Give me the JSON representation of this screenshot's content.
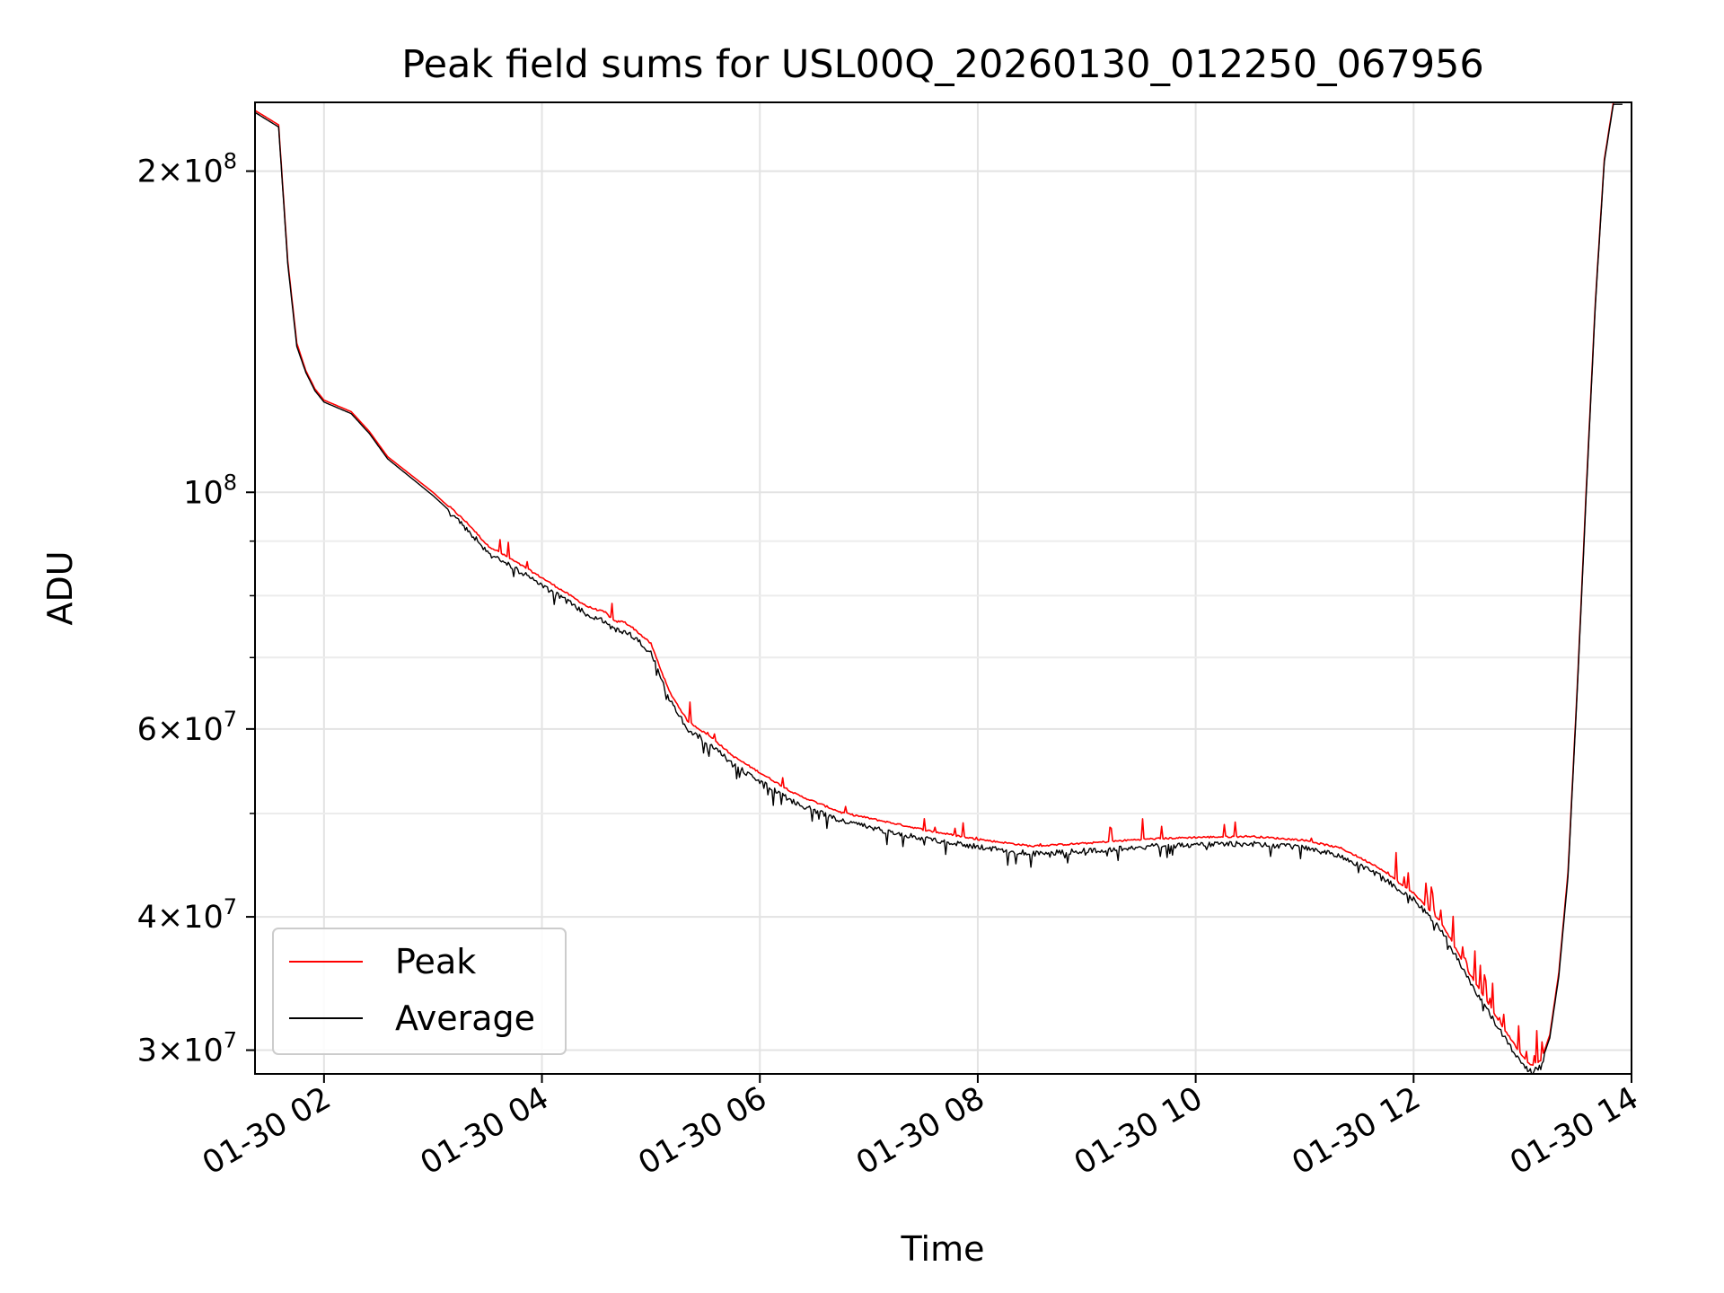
{
  "chart_data": {
    "type": "line",
    "title": "Peak field sums for USL00Q_20260130_012250_067956",
    "xlabel": "Time",
    "ylabel": "ADU",
    "y_scale": "log",
    "xlim": [
      "2026-01-30 01:22",
      "2026-01-30 14:00"
    ],
    "ylim": [
      28500000,
      232000000
    ],
    "grid": true,
    "legend_position": "lower-left",
    "x_ticks": [
      {
        "value": "2026-01-30 02:00",
        "label": "01-30 02"
      },
      {
        "value": "2026-01-30 04:00",
        "label": "01-30 04"
      },
      {
        "value": "2026-01-30 06:00",
        "label": "01-30 06"
      },
      {
        "value": "2026-01-30 08:00",
        "label": "01-30 08"
      },
      {
        "value": "2026-01-30 10:00",
        "label": "01-30 10"
      },
      {
        "value": "2026-01-30 12:00",
        "label": "01-30 12"
      },
      {
        "value": "2026-01-30 14:00",
        "label": "01-30 14"
      }
    ],
    "y_major_ticks": [
      {
        "value": 30000000,
        "mantissa": "3",
        "exponent": "7"
      },
      {
        "value": 40000000,
        "mantissa": "4",
        "exponent": "7"
      },
      {
        "value": 60000000,
        "mantissa": "6",
        "exponent": "7"
      },
      {
        "value": 100000000,
        "mantissa": "",
        "exponent": "8"
      },
      {
        "value": 200000000,
        "mantissa": "2",
        "exponent": "8"
      }
    ],
    "y_minor_ticks": [
      50000000,
      70000000,
      80000000,
      90000000
    ],
    "series": [
      {
        "name": "Peak",
        "color": "#ff0000",
        "x": [
          "2026-01-30 01:22",
          "2026-01-30 01:35",
          "2026-01-30 01:40",
          "2026-01-30 01:45",
          "2026-01-30 01:50",
          "2026-01-30 01:55",
          "2026-01-30 02:00",
          "2026-01-30 02:15",
          "2026-01-30 02:25",
          "2026-01-30 02:35",
          "2026-01-30 03:00",
          "2026-01-30 03:20",
          "2026-01-30 03:30",
          "2026-01-30 03:40",
          "2026-01-30 04:00",
          "2026-01-30 04:15",
          "2026-01-30 04:25",
          "2026-01-30 04:35",
          "2026-01-30 04:40",
          "2026-01-30 04:45",
          "2026-01-30 04:50",
          "2026-01-30 05:00",
          "2026-01-30 05:10",
          "2026-01-30 05:20",
          "2026-01-30 05:35",
          "2026-01-30 05:45",
          "2026-01-30 06:00",
          "2026-01-30 06:20",
          "2026-01-30 06:45",
          "2026-01-30 07:10",
          "2026-01-30 07:35",
          "2026-01-30 08:00",
          "2026-01-30 08:30",
          "2026-01-30 09:00",
          "2026-01-30 09:30",
          "2026-01-30 10:00",
          "2026-01-30 10:30",
          "2026-01-30 11:00",
          "2026-01-30 11:20",
          "2026-01-30 11:40",
          "2026-01-30 12:00",
          "2026-01-30 12:15",
          "2026-01-30 12:30",
          "2026-01-30 12:45",
          "2026-01-30 12:55",
          "2026-01-30 13:00",
          "2026-01-30 13:05",
          "2026-01-30 13:10",
          "2026-01-30 13:15",
          "2026-01-30 13:20",
          "2026-01-30 13:25",
          "2026-01-30 13:30",
          "2026-01-30 13:35",
          "2026-01-30 13:40",
          "2026-01-30 13:45",
          "2026-01-30 13:50",
          "2026-01-30 13:55"
        ],
        "values": [
          228000000,
          221000000,
          165000000,
          138000000,
          130000000,
          125000000,
          122000000,
          119000000,
          114000000,
          108000000,
          100000000,
          93000000,
          89000000,
          87000000,
          83000000,
          80000000,
          78000000,
          77000000,
          75500000,
          75500000,
          74500000,
          72000000,
          65000000,
          61000000,
          58500000,
          56500000,
          54500000,
          52000000,
          50000000,
          49000000,
          48000000,
          47200000,
          46500000,
          46800000,
          47200000,
          47400000,
          47500000,
          47100000,
          46300000,
          44500000,
          42000000,
          39500000,
          35500000,
          32300000,
          30400000,
          29500000,
          29000000,
          29300000,
          31000000,
          35500000,
          44000000,
          65000000,
          100000000,
          150000000,
          205000000,
          232000000,
          232000000
        ]
      },
      {
        "name": "Average",
        "color": "#000000",
        "x": [
          "2026-01-30 01:22",
          "2026-01-30 01:35",
          "2026-01-30 01:40",
          "2026-01-30 01:45",
          "2026-01-30 01:50",
          "2026-01-30 01:55",
          "2026-01-30 02:00",
          "2026-01-30 02:15",
          "2026-01-30 02:25",
          "2026-01-30 02:35",
          "2026-01-30 03:00",
          "2026-01-30 03:20",
          "2026-01-30 03:30",
          "2026-01-30 03:40",
          "2026-01-30 04:00",
          "2026-01-30 04:15",
          "2026-01-30 04:25",
          "2026-01-30 04:35",
          "2026-01-30 04:40",
          "2026-01-30 04:45",
          "2026-01-30 04:50",
          "2026-01-30 05:00",
          "2026-01-30 05:10",
          "2026-01-30 05:20",
          "2026-01-30 05:35",
          "2026-01-30 05:45",
          "2026-01-30 06:00",
          "2026-01-30 06:20",
          "2026-01-30 06:45",
          "2026-01-30 07:10",
          "2026-01-30 07:35",
          "2026-01-30 08:00",
          "2026-01-30 08:30",
          "2026-01-30 09:00",
          "2026-01-30 09:30",
          "2026-01-30 10:00",
          "2026-01-30 10:30",
          "2026-01-30 11:00",
          "2026-01-30 11:20",
          "2026-01-30 11:40",
          "2026-01-30 12:00",
          "2026-01-30 12:15",
          "2026-01-30 12:30",
          "2026-01-30 12:45",
          "2026-01-30 12:55",
          "2026-01-30 13:00",
          "2026-01-30 13:05",
          "2026-01-30 13:10",
          "2026-01-30 13:15",
          "2026-01-30 13:20",
          "2026-01-30 13:25",
          "2026-01-30 13:30",
          "2026-01-30 13:35",
          "2026-01-30 13:40",
          "2026-01-30 13:45",
          "2026-01-30 13:50",
          "2026-01-30 13:55"
        ],
        "values": [
          227000000,
          220000000,
          164000000,
          137000000,
          129500000,
          124500000,
          121500000,
          118500000,
          113500000,
          107500000,
          99300000,
          92400000,
          88400000,
          86400000,
          82300000,
          79300000,
          77200000,
          76000000,
          74700000,
          74700000,
          73700000,
          71200000,
          64400000,
          60400000,
          58000000,
          55900000,
          53900000,
          51400000,
          49500000,
          48400000,
          47500000,
          46800000,
          46100000,
          46400000,
          46800000,
          47000000,
          47100000,
          46700000,
          45900000,
          44100000,
          41800000,
          39200000,
          35200000,
          32000000,
          30100000,
          29200000,
          28800000,
          29100000,
          30800000,
          35200000,
          43600000,
          64500000,
          99000000,
          149000000,
          204000000,
          231000000,
          231000000
        ]
      }
    ]
  }
}
